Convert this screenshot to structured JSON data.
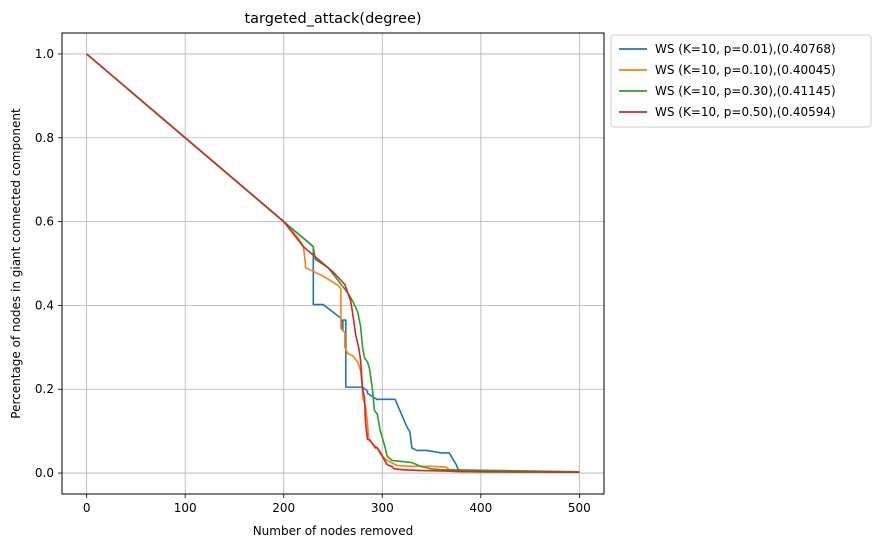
{
  "chart_data": {
    "type": "line",
    "title": "targeted_attack(degree)",
    "xlabel": "Number of nodes removed",
    "ylabel": "Percentage of nodes in giant connected component",
    "xlim": [
      -25,
      525
    ],
    "ylim": [
      -0.05,
      1.05
    ],
    "xticks": [
      0,
      100,
      200,
      300,
      400,
      500
    ],
    "yticks": [
      0.0,
      0.2,
      0.4,
      0.6,
      0.8,
      1.0
    ],
    "xtick_labels": [
      "0",
      "100",
      "200",
      "300",
      "400",
      "500"
    ],
    "ytick_labels": [
      "0.0",
      "0.2",
      "0.4",
      "0.6",
      "0.8",
      "1.0"
    ],
    "grid": true,
    "legend_position": "outside-top-right",
    "series": [
      {
        "name": "WS (K=10, p=0.01),(0.40768)",
        "color": "#1f77b4",
        "x": [
          0,
          200,
          215,
          228,
          230,
          230,
          240,
          255,
          258,
          260,
          260,
          263,
          263,
          270,
          280,
          285,
          285,
          295,
          295,
          313,
          325,
          328,
          330,
          335,
          345,
          360,
          368,
          375,
          378,
          400,
          420
        ],
        "y": [
          1.0,
          0.6,
          0.57,
          0.545,
          0.54,
          0.402,
          0.402,
          0.375,
          0.37,
          0.34,
          0.365,
          0.365,
          0.205,
          0.205,
          0.205,
          0.195,
          0.19,
          0.175,
          0.176,
          0.176,
          0.11,
          0.098,
          0.06,
          0.054,
          0.054,
          0.048,
          0.048,
          0.02,
          0.004,
          0.004,
          0.004
        ]
      },
      {
        "name": "WS (K=10, p=0.10),(0.40045)",
        "color": "#ff7f0e",
        "x": [
          0,
          200,
          215,
          220,
          222,
          222,
          240,
          255,
          258,
          258,
          262,
          262,
          265,
          270,
          275,
          278,
          280,
          280,
          283,
          285,
          286,
          286,
          290,
          295,
          298,
          305,
          315,
          330,
          350,
          365,
          370,
          380,
          500
        ],
        "y": [
          1.0,
          0.6,
          0.56,
          0.54,
          0.5,
          0.49,
          0.47,
          0.448,
          0.44,
          0.345,
          0.335,
          0.3,
          0.285,
          0.28,
          0.265,
          0.245,
          0.2,
          0.18,
          0.16,
          0.12,
          0.085,
          0.08,
          0.07,
          0.06,
          0.045,
          0.03,
          0.018,
          0.016,
          0.016,
          0.014,
          0.004,
          0.003,
          0.003
        ]
      },
      {
        "name": "WS (K=10, p=0.30),(0.41145)",
        "color": "#2ca02c",
        "x": [
          0,
          200,
          215,
          225,
          230,
          232,
          245,
          255,
          265,
          270,
          275,
          278,
          280,
          282,
          285,
          287,
          290,
          292,
          295,
          298,
          300,
          303,
          305,
          310,
          330,
          340,
          350,
          360,
          500
        ],
        "y": [
          1.0,
          0.6,
          0.57,
          0.55,
          0.54,
          0.51,
          0.49,
          0.46,
          0.43,
          0.41,
          0.385,
          0.35,
          0.3,
          0.275,
          0.265,
          0.25,
          0.2,
          0.15,
          0.14,
          0.1,
          0.085,
          0.06,
          0.04,
          0.03,
          0.025,
          0.015,
          0.01,
          0.008,
          0.003
        ]
      },
      {
        "name": "WS (K=10, p=0.50),(0.40594)",
        "color": "#d62728",
        "x": [
          0,
          200,
          210,
          220,
          230,
          240,
          250,
          258,
          262,
          265,
          268,
          270,
          273,
          276,
          278,
          280,
          282,
          283,
          285,
          287,
          290,
          293,
          295,
          298,
          300,
          305,
          310,
          312,
          320,
          340,
          360,
          400,
          500
        ],
        "y": [
          1.0,
          0.6,
          0.57,
          0.54,
          0.52,
          0.5,
          0.48,
          0.46,
          0.45,
          0.43,
          0.41,
          0.38,
          0.33,
          0.3,
          0.27,
          0.2,
          0.18,
          0.12,
          0.08,
          0.08,
          0.07,
          0.06,
          0.06,
          0.05,
          0.04,
          0.02,
          0.015,
          0.01,
          0.008,
          0.006,
          0.005,
          0.003,
          0.002
        ]
      }
    ]
  }
}
